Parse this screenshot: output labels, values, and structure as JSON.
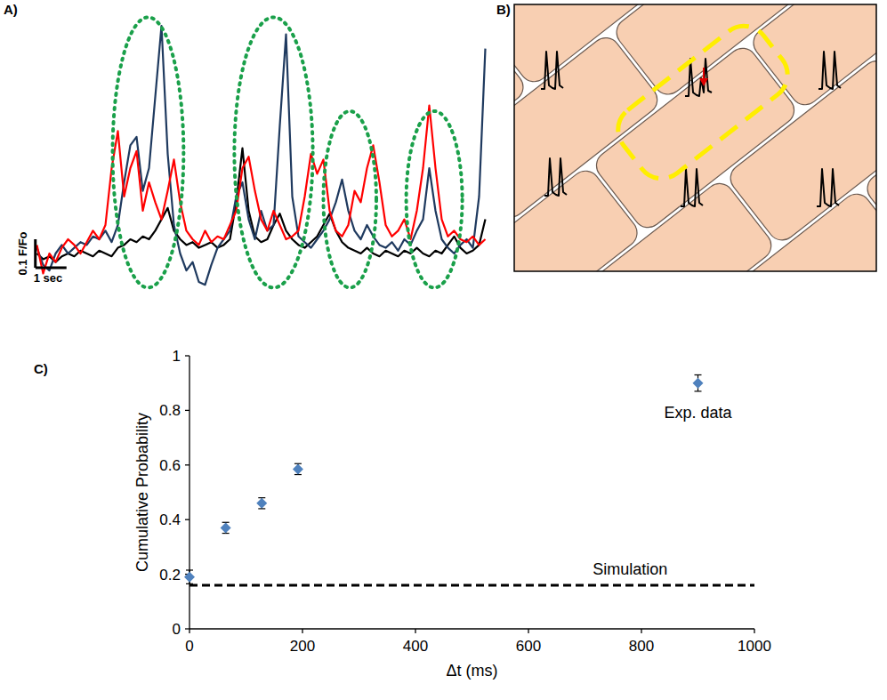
{
  "chart_data": [
    {
      "type": "line",
      "label": "A)",
      "tick_labels": false,
      "xlim": [
        -0.1,
        14.5
      ],
      "ylim": [
        0.85,
        1.85
      ],
      "x": [
        0,
        0.2,
        0.4,
        0.6,
        0.8,
        1,
        1.2,
        1.4,
        1.6,
        1.8,
        2,
        2.2,
        2.4,
        2.6,
        2.8,
        3,
        3.2,
        3.4,
        3.6,
        3.8,
        4,
        4.2,
        4.4,
        4.6,
        4.8,
        5,
        5.2,
        5.4,
        5.6,
        5.8,
        6,
        6.2,
        6.4,
        6.6,
        6.8,
        7,
        7.2,
        7.4,
        7.6,
        7.8,
        8,
        8.2,
        8.4,
        8.6,
        8.8,
        9,
        9.2,
        9.4,
        9.6,
        9.8,
        10,
        10.2,
        10.4,
        10.6,
        10.8,
        11,
        11.2,
        11.4,
        11.6,
        11.8,
        12,
        12.2,
        12.4,
        12.6,
        12.8,
        13,
        13.2,
        13.4,
        13.6,
        13.8,
        14,
        14.2,
        14.4
      ],
      "series": [
        {
          "color": "#000000",
          "values": [
            1.0,
            0.98,
            0.99,
            0.97,
            0.99,
            1.0,
            0.99,
            1.01,
            1.0,
            0.99,
            1.01,
            1.0,
            0.99,
            1.02,
            1.03,
            1.05,
            1.04,
            1.06,
            1.05,
            1.08,
            1.12,
            1.16,
            1.08,
            1.05,
            1.03,
            1.04,
            1.02,
            1.03,
            1.04,
            1.02,
            1.03,
            1.05,
            1.18,
            1.37,
            1.15,
            1.06,
            1.04,
            1.05,
            1.1,
            1.14,
            1.08,
            1.05,
            1.03,
            1.02,
            1.04,
            1.06,
            1.1,
            1.14,
            1.08,
            1.04,
            1.02,
            1.01,
            1.0,
            1.02,
            1.0,
            0.99,
            1.01,
            1.0,
            0.99,
            1.01,
            1.0,
            1.02,
            1.0,
            0.99,
            1.01,
            1.0,
            1.03,
            1.06,
            1.02,
            1.0,
            1.01,
            1.03,
            1.12
          ]
        },
        {
          "color": "#1f3a5f",
          "values": [
            1.02,
            0.96,
            0.94,
            1.0,
            1.03,
            1.0,
            1.02,
            1.04,
            1.03,
            1.06,
            1.05,
            1.08,
            1.04,
            1.1,
            1.25,
            1.38,
            1.41,
            1.22,
            1.3,
            1.55,
            1.8,
            1.35,
            1.1,
            1.0,
            0.94,
            0.97,
            0.9,
            0.89,
            0.96,
            1.02,
            1.05,
            1.08,
            1.2,
            1.25,
            1.12,
            1.05,
            1.15,
            1.08,
            1.1,
            1.45,
            1.77,
            1.2,
            1.06,
            1.04,
            1.02,
            1.05,
            1.08,
            1.12,
            1.18,
            1.26,
            1.15,
            1.08,
            1.05,
            1.1,
            1.06,
            1.03,
            1.02,
            1.04,
            1.01,
            1.05,
            1.03,
            1.08,
            1.12,
            1.3,
            1.15,
            1.05,
            1.02,
            1.0,
            1.03,
            1.05,
            1.02,
            1.2,
            1.72
          ]
        },
        {
          "color": "#ff0000",
          "values": [
            1.03,
            0.93,
            1.0,
            0.97,
            1.02,
            1.05,
            1.03,
            1.0,
            1.04,
            1.08,
            1.05,
            1.1,
            1.3,
            1.43,
            1.2,
            1.3,
            1.36,
            1.15,
            1.25,
            1.18,
            1.12,
            1.22,
            1.33,
            1.18,
            1.08,
            1.05,
            1.03,
            1.08,
            1.04,
            1.06,
            1.05,
            1.1,
            1.15,
            1.3,
            1.34,
            1.22,
            1.12,
            1.08,
            1.15,
            1.1,
            1.05,
            1.06,
            1.08,
            1.2,
            1.35,
            1.28,
            1.33,
            1.15,
            1.08,
            1.06,
            1.1,
            1.22,
            1.18,
            1.3,
            1.38,
            1.25,
            1.1,
            1.06,
            1.08,
            1.12,
            1.05,
            1.15,
            1.3,
            1.52,
            1.3,
            1.12,
            1.06,
            1.08,
            1.05,
            1.04,
            1.06,
            1.03,
            1.05
          ]
        }
      ],
      "highlights": [
        {
          "x": [
            2.43,
            4.71
          ],
          "y": [
            0.88,
            1.83
          ],
          "color": "#1aa04a"
        },
        {
          "x": [
            6.34,
            8.86
          ],
          "y": [
            0.88,
            1.83
          ],
          "color": "#1aa04a"
        },
        {
          "x": [
            9.2,
            10.9
          ],
          "y": [
            0.88,
            1.5
          ],
          "color": "#1aa04a"
        },
        {
          "x": [
            11.86,
            13.66
          ],
          "y": [
            0.88,
            1.5
          ],
          "color": "#1aa04a"
        }
      ],
      "scale_bar": {
        "origin": [
          -0.05,
          0.95
        ],
        "x_size": 1,
        "x_label": "1 sec",
        "y_size": 0.1,
        "y_label": "0.1 F/Fo"
      }
    },
    {
      "type": "diagram",
      "label": "B)"
    },
    {
      "type": "scatter",
      "label": "C)",
      "x_label": "Δt (ms)",
      "y_label": "Cumulative Probability",
      "xlim": [
        0,
        1000
      ],
      "ylim": [
        0,
        1
      ],
      "xticks": [
        0,
        200,
        400,
        600,
        800,
        1000
      ],
      "yticks": [
        0,
        0.2,
        0.4,
        0.6,
        0.8,
        1
      ],
      "grid": false,
      "series": [
        {
          "name": "Exp. data",
          "type": "scatter",
          "color": "#4f81bd",
          "marker": "diamond",
          "x": [
            0,
            64,
            128,
            192,
            900
          ],
          "values": [
            0.19,
            0.37,
            0.46,
            0.585,
            0.9
          ],
          "errors": [
            0.025,
            0.02,
            0.02,
            0.02,
            0.03
          ]
        },
        {
          "name": "Simulation",
          "type": "line",
          "color": "#000000",
          "line_style": "dashed",
          "x": [
            0,
            1000
          ],
          "values": [
            0.16,
            0.16
          ]
        }
      ]
    }
  ]
}
